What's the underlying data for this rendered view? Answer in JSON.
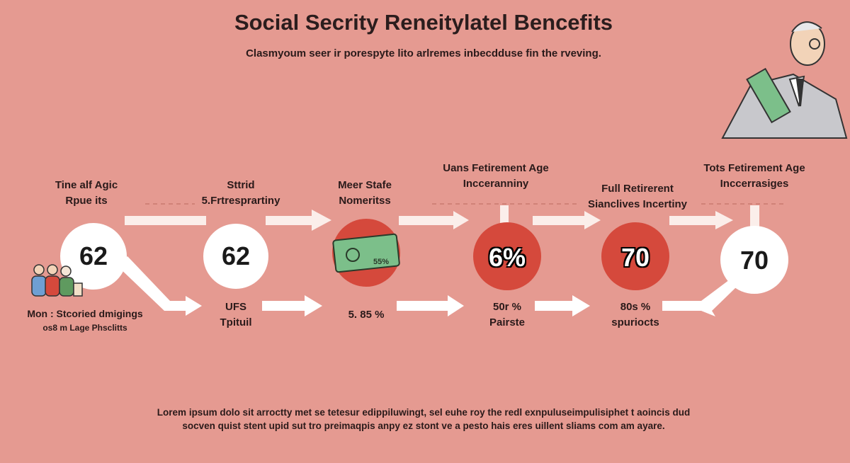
{
  "title": "Social Secrity Reneitylatel Bencefits",
  "subtitle": "Clasmyoum seer ir porespyte lito arlremes inbecdduse fin the rveving.",
  "steps": [
    {
      "top_label": [
        "Tine alf Agic",
        "Rpue its"
      ],
      "value": "62",
      "circle": "white",
      "bottom_label": [
        "Mon : Stcoried dmigings",
        "os8 m Lage Phsclitts"
      ],
      "icon": "people-icon"
    },
    {
      "top_label": [
        "Sttrid",
        "5.Frtresprartiny"
      ],
      "value": "62",
      "circle": "white",
      "bottom_label": [
        "UFS",
        "Tpituil"
      ]
    },
    {
      "top_label": [
        "Meer Stafe",
        "Nomeritss"
      ],
      "value": "55%",
      "circle": "money",
      "bottom_label": [
        "5. 85 %"
      ],
      "icon": "money-icon"
    },
    {
      "top_label": [
        "Uans Fetirement Age",
        "Incceranniny"
      ],
      "value": "6%",
      "circle": "red",
      "bottom_label": [
        "50r %",
        "Pairste"
      ]
    },
    {
      "top_label": [
        "Full Retirerent",
        "Sianclives Incertiny"
      ],
      "value": "70",
      "circle": "red",
      "bottom_label": [
        "80s %",
        "spuriocts"
      ]
    },
    {
      "top_label": [
        "Tots Fetirement Age",
        "Inccerrasiges"
      ],
      "value": "70",
      "circle": "white",
      "bottom_label": []
    }
  ],
  "footer": [
    "Lorem ipsum dolo sit arroctty met se tetesur edippiluwingt, sel euhe roy the redl exnpuluseimpulisiphet t aoincis dud",
    "socven quist stent upid sut tro preimaqpis anpy ez stont ve a pesto hais eres uillent sliams com am ayare."
  ],
  "colors": {
    "background": "#e59a91",
    "red": "#d5493c",
    "white": "#ffffff",
    "arrow": "#fbeeea",
    "money": "#7cbf8a"
  }
}
